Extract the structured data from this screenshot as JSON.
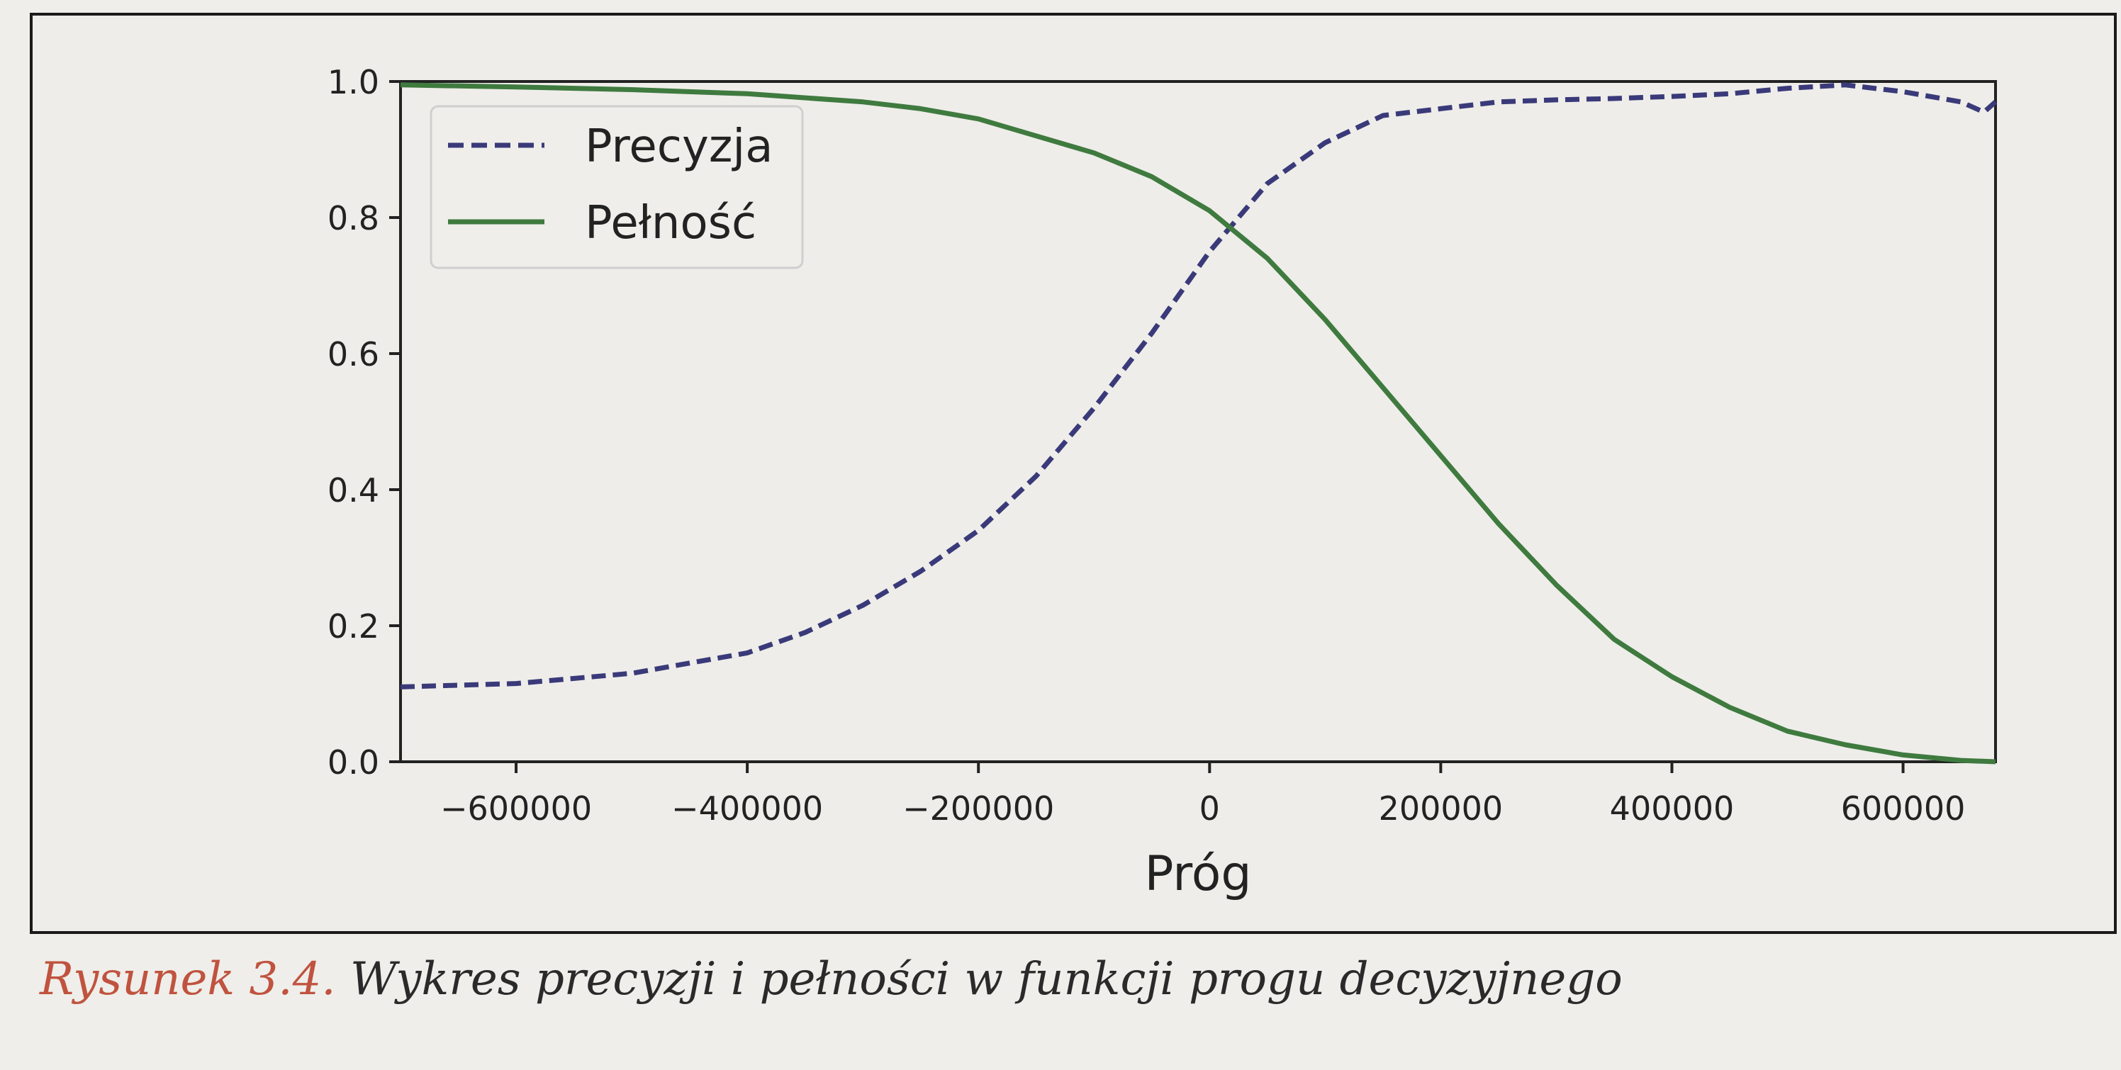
{
  "caption": {
    "number": "Rysunek 3.4.",
    "text": " Wykres precyzji i pełności w funkcji progu decyzyjnego"
  },
  "chart_data": {
    "type": "line",
    "xlabel": "Próg",
    "ylabel": "",
    "xlim": [
      -700000,
      680000
    ],
    "ylim": [
      0,
      1.0
    ],
    "xticks": [
      -600000,
      -400000,
      -200000,
      0,
      200000,
      400000,
      600000
    ],
    "xtick_labels": [
      "−600000",
      "−400000",
      "−200000",
      "0",
      "200000",
      "400000",
      "600000"
    ],
    "yticks": [
      0.0,
      0.2,
      0.4,
      0.6,
      0.8,
      1.0
    ],
    "ytick_labels": [
      "0.0",
      "0.2",
      "0.4",
      "0.6",
      "0.8",
      "1.0"
    ],
    "grid": false,
    "legend_position": "top-left",
    "series": [
      {
        "name": "Precyzja",
        "style": "dashed",
        "color": "#3a3a7a",
        "x": [
          -700000,
          -600000,
          -500000,
          -400000,
          -350000,
          -300000,
          -250000,
          -200000,
          -150000,
          -100000,
          -50000,
          0,
          50000,
          100000,
          150000,
          200000,
          250000,
          300000,
          350000,
          400000,
          450000,
          500000,
          550000,
          600000,
          650000,
          670000,
          680000
        ],
        "y": [
          0.11,
          0.115,
          0.13,
          0.16,
          0.19,
          0.23,
          0.28,
          0.34,
          0.42,
          0.52,
          0.63,
          0.75,
          0.85,
          0.91,
          0.95,
          0.96,
          0.97,
          0.973,
          0.975,
          0.978,
          0.982,
          0.99,
          0.995,
          0.985,
          0.97,
          0.955,
          0.97
        ]
      },
      {
        "name": "Pełność",
        "style": "solid",
        "color": "#3f7a3f",
        "x": [
          -700000,
          -600000,
          -500000,
          -400000,
          -300000,
          -250000,
          -200000,
          -150000,
          -100000,
          -50000,
          0,
          50000,
          100000,
          150000,
          200000,
          250000,
          300000,
          350000,
          400000,
          450000,
          500000,
          550000,
          600000,
          650000,
          680000
        ],
        "y": [
          0.995,
          0.992,
          0.988,
          0.982,
          0.97,
          0.96,
          0.945,
          0.92,
          0.895,
          0.86,
          0.81,
          0.74,
          0.65,
          0.55,
          0.45,
          0.35,
          0.26,
          0.18,
          0.125,
          0.08,
          0.045,
          0.025,
          0.01,
          0.002,
          0.0
        ]
      }
    ]
  }
}
